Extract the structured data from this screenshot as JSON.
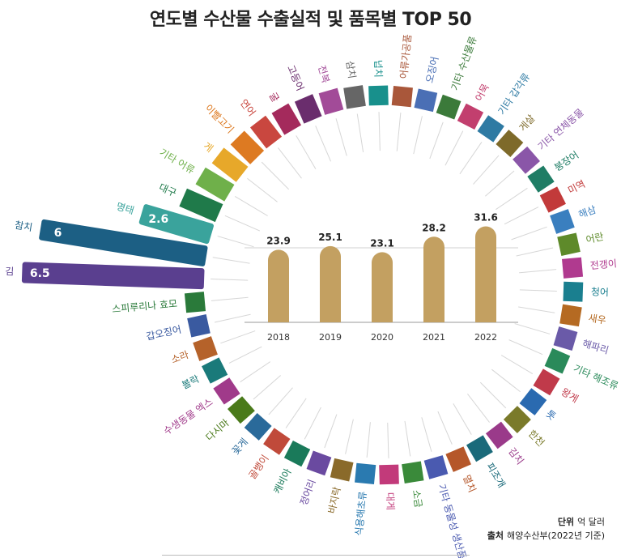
{
  "title": "연도별 수산물 수출실적 및 품목별 TOP 50",
  "notes": {
    "unit_label": "단위",
    "unit_value": "억 달러",
    "source_label": "출처",
    "source_value": "해양수산부(2022년 기준)"
  },
  "chart_data": [
    {
      "type": "bar",
      "categories": [
        "2018",
        "2019",
        "2020",
        "2021",
        "2022"
      ],
      "values": [
        23.9,
        25.1,
        23.1,
        28.2,
        31.6
      ],
      "ylim": [
        0,
        40
      ],
      "bar_color": "#c3a061"
    },
    {
      "type": "bar",
      "variant": "radial",
      "items": [
        {
          "label": "김",
          "value": 6.5,
          "value_label": "6.5",
          "color": "#5a3f8f"
        },
        {
          "label": "참치",
          "value": 6,
          "value_label": "6",
          "color": "#1c5f84"
        },
        {
          "label": "명태",
          "value": 2.6,
          "value_label": "2.6",
          "color": "#3aa39c"
        },
        {
          "label": "대구",
          "value": 1.4,
          "color": "#1f7a4a"
        },
        {
          "label": "기타 어류",
          "value": 1.2,
          "color": "#6fb04a"
        },
        {
          "label": "게",
          "value": 1.1,
          "color": "#e7a82a"
        },
        {
          "label": "이빨고기",
          "value": 1.0,
          "color": "#dd7a22"
        },
        {
          "label": "연어",
          "value": 0.95,
          "color": "#c9473f"
        },
        {
          "label": "굴",
          "value": 0.9,
          "color": "#a42a5c"
        },
        {
          "label": "고등어",
          "value": 0.85,
          "color": "#6a2d6d"
        },
        {
          "label": "전복",
          "value": 0.8,
          "color": "#a24b98"
        },
        {
          "label": "삼치",
          "value": 0.75,
          "color": "#666666"
        },
        {
          "label": "넙치",
          "value": 0.7,
          "color": "#18908c"
        },
        {
          "label": "어류가공품",
          "value": 0.65,
          "color": "#a9573a"
        },
        {
          "label": "오징어",
          "value": 0.62,
          "color": "#4a6fb5"
        },
        {
          "label": "기타 수산물류",
          "value": 0.58,
          "color": "#3b7a3a"
        },
        {
          "label": "어묵",
          "value": 0.55,
          "color": "#c23f6e"
        },
        {
          "label": "기타 갑각류",
          "value": 0.5,
          "color": "#2e7aa3"
        },
        {
          "label": "게살",
          "value": 0.45,
          "color": "#7e6a2a"
        },
        {
          "label": "기타 연체동물",
          "value": 0.42,
          "color": "#8a56a8"
        },
        {
          "label": "붕장어",
          "value": 0.4,
          "color": "#1f7d65"
        },
        {
          "label": "미역",
          "value": 0.38,
          "color": "#c23a3a"
        },
        {
          "label": "해삼",
          "value": 0.35,
          "color": "#3a7fbf"
        },
        {
          "label": "어란",
          "value": 0.33,
          "color": "#5e8a2a"
        },
        {
          "label": "전갱이",
          "value": 0.3,
          "color": "#b03a8f"
        },
        {
          "label": "청어",
          "value": 0.28,
          "color": "#1a7f8f"
        },
        {
          "label": "새우",
          "value": 0.26,
          "color": "#b56a22"
        },
        {
          "label": "해파리",
          "value": 0.25,
          "color": "#6a5aa8"
        },
        {
          "label": "기타 해조류",
          "value": 0.24,
          "color": "#2a8a5a"
        },
        {
          "label": "왕게",
          "value": 0.23,
          "color": "#c03a4a"
        },
        {
          "label": "톳",
          "value": 0.22,
          "color": "#2a6ab0"
        },
        {
          "label": "한천",
          "value": 0.21,
          "color": "#7a7a2a"
        },
        {
          "label": "김치",
          "value": 0.2,
          "color": "#9a3a8a"
        },
        {
          "label": "피조개",
          "value": 0.19,
          "color": "#1a6a7a"
        },
        {
          "label": "멸치",
          "value": 0.18,
          "color": "#b5572a"
        },
        {
          "label": "기타 동물성 생산품",
          "value": 0.17,
          "color": "#4a5ab0"
        },
        {
          "label": "소금",
          "value": 0.16,
          "color": "#3a8a3a"
        },
        {
          "label": "대게",
          "value": 0.16,
          "color": "#c23a7a"
        },
        {
          "label": "식용해초류",
          "value": 0.15,
          "color": "#2a7ab0"
        },
        {
          "label": "바지락",
          "value": 0.15,
          "color": "#8a6a2a"
        },
        {
          "label": "정어리",
          "value": 0.14,
          "color": "#6a4aa0"
        },
        {
          "label": "캐비아",
          "value": 0.14,
          "color": "#1a7a5a"
        },
        {
          "label": "골뱅이",
          "value": 0.13,
          "color": "#c04a3a"
        },
        {
          "label": "꽃게",
          "value": 0.13,
          "color": "#2a6a9a"
        },
        {
          "label": "다시마",
          "value": 0.12,
          "color": "#4a7a1a"
        },
        {
          "label": "수생동물 엑스",
          "value": 0.12,
          "color": "#a03a8a"
        },
        {
          "label": "볼락",
          "value": 0.11,
          "color": "#1a7a7a"
        },
        {
          "label": "소라",
          "value": 0.11,
          "color": "#b5622a"
        },
        {
          "label": "갑오징어",
          "value": 0.1,
          "color": "#3a5aa0"
        },
        {
          "label": "스피루리나 효모",
          "value": 0.1,
          "color": "#2a7a3a"
        }
      ]
    }
  ]
}
